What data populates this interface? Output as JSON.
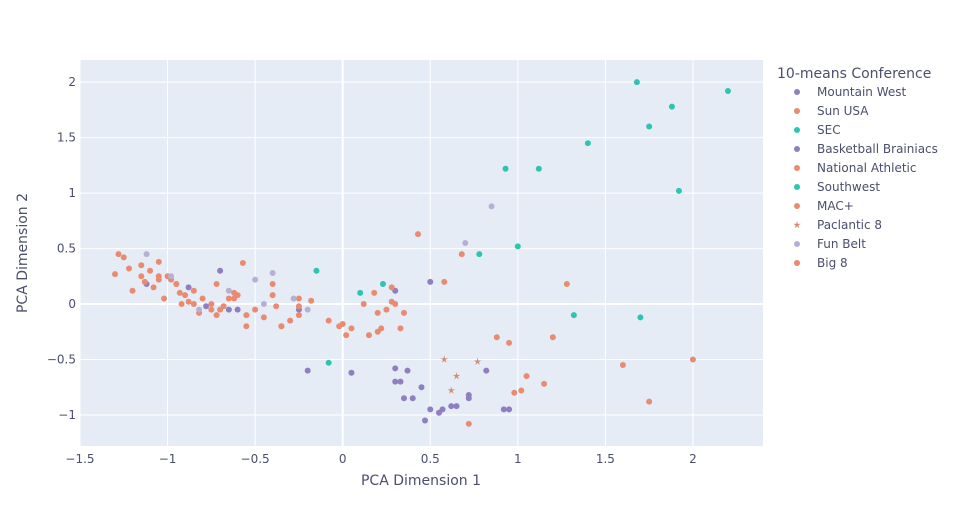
{
  "chart_data": {
    "type": "scatter",
    "xlabel": "PCA Dimension 1",
    "ylabel": "PCA Dimension 2",
    "xlim": [
      -1.5,
      2.4
    ],
    "ylim": [
      -1.28,
      2.2
    ],
    "x_ticks": [
      -1.5,
      -1,
      -0.5,
      0,
      0.5,
      1,
      1.5,
      2
    ],
    "x_tick_labels": [
      "−1.5",
      "−1",
      "−0.5",
      "0",
      "0.5",
      "1",
      "1.5",
      "2"
    ],
    "y_ticks": [
      -1,
      -0.5,
      0,
      0.5,
      1,
      1.5,
      2
    ],
    "y_tick_labels": [
      "−1",
      "−0.5",
      "0",
      "0.5",
      "1",
      "1.5",
      "2"
    ],
    "grid": true,
    "legend_title": "10-means Conference",
    "legend_position": "right",
    "series": [
      {
        "name": "Mountain West",
        "color": "#8e7fc0",
        "symbol": "circle",
        "x": [
          -0.25,
          -0.2,
          -0.6,
          -0.7,
          0.05,
          0.3,
          0.3,
          0.35,
          0.37,
          0.4,
          0.47,
          0.5,
          0.57,
          0.65,
          0.72,
          0.82,
          0.95
        ],
        "y": [
          -0.05,
          -0.6,
          -0.05,
          0.3,
          -0.62,
          -0.58,
          -0.7,
          -0.85,
          -0.6,
          -0.85,
          -1.05,
          -0.95,
          -0.95,
          -0.92,
          -0.85,
          -0.6,
          -0.95
        ]
      },
      {
        "name": "Sun USA",
        "color": "#e88b70",
        "symbol": "circle",
        "x": [
          -1.3,
          -1.22,
          -1.15,
          -1.1,
          -1.05,
          -1.0,
          -0.95,
          -0.9,
          -0.85,
          -0.8,
          -0.75,
          -0.7,
          -0.65,
          -0.6,
          -0.55,
          -0.4,
          -0.35,
          -0.3,
          -0.08,
          -0.02,
          0.2,
          0.22,
          0.25,
          0.3,
          0.43
        ],
        "y": [
          0.27,
          0.32,
          0.25,
          0.3,
          0.22,
          0.25,
          0.18,
          0.08,
          0.12,
          0.05,
          0.0,
          -0.05,
          0.05,
          0.08,
          -0.2,
          0.08,
          -0.2,
          -0.15,
          -0.15,
          -0.2,
          -0.25,
          -0.22,
          -0.05,
          0.0,
          0.63
        ]
      },
      {
        "name": "SEC",
        "color": "#2ec4b0",
        "symbol": "circle",
        "x": [
          1.68,
          1.88,
          1.75,
          1.4,
          0.93,
          1.12,
          2.2,
          1.92,
          1.0,
          0.78
        ],
        "y": [
          2.0,
          1.78,
          1.6,
          1.45,
          1.22,
          1.22,
          1.92,
          1.02,
          0.52,
          0.45
        ]
      },
      {
        "name": "Basketball Brainiacs",
        "color": "#8e7fc0",
        "symbol": "circle",
        "x": [
          -1.12,
          -0.88,
          -0.78,
          -0.65,
          0.5,
          0.3,
          0.33,
          0.45,
          0.55,
          0.62,
          0.72,
          0.92
        ],
        "y": [
          0.18,
          0.15,
          -0.02,
          -0.05,
          0.2,
          0.12,
          -0.7,
          -0.75,
          -0.98,
          -0.92,
          -0.82,
          -0.95
        ]
      },
      {
        "name": "National Athletic",
        "color": "#e88b70",
        "symbol": "circle",
        "x": [
          -1.2,
          -1.13,
          -1.08,
          -1.02,
          -0.98,
          -0.93,
          -0.88,
          -0.82,
          -0.72,
          -0.62,
          -0.57,
          -0.45,
          -0.38,
          -0.25,
          -0.18,
          0.02,
          0.18,
          0.28,
          0.33,
          0.68,
          1.02,
          1.6,
          2.0,
          1.75
        ],
        "y": [
          0.12,
          0.2,
          0.15,
          0.05,
          0.22,
          0.1,
          0.02,
          -0.08,
          -0.1,
          0.05,
          0.37,
          -0.12,
          -0.02,
          -0.1,
          0.03,
          -0.28,
          0.1,
          0.15,
          -0.22,
          0.45,
          -0.78,
          -0.55,
          -0.5,
          -0.88
        ]
      },
      {
        "name": "Southwest",
        "color": "#2ec4b0",
        "symbol": "circle",
        "x": [
          -0.15,
          -0.08,
          0.1,
          0.23,
          1.32,
          1.7
        ],
        "y": [
          0.3,
          -0.53,
          0.1,
          0.18,
          -0.1,
          -0.12
        ]
      },
      {
        "name": "MAC+",
        "color": "#e88b70",
        "symbol": "circle",
        "x": [
          -1.28,
          -1.15,
          -1.05,
          -0.95,
          -0.85,
          -0.75,
          -0.68,
          -0.55,
          -0.35,
          -0.25,
          0.0,
          0.12,
          0.2,
          0.88,
          0.98,
          1.05,
          1.15
        ],
        "y": [
          0.45,
          0.35,
          0.25,
          0.18,
          0.0,
          -0.05,
          -0.02,
          -0.1,
          -0.2,
          0.05,
          -0.18,
          0.0,
          -0.08,
          -0.3,
          -0.8,
          -0.65,
          -0.72
        ]
      },
      {
        "name": "Paclantic 8",
        "color": "#d48c6e",
        "symbol": "star",
        "x": [
          0.58,
          0.65,
          0.77,
          0.62
        ],
        "y": [
          -0.5,
          -0.65,
          -0.52,
          -0.78
        ]
      },
      {
        "name": "Fun Belt",
        "color": "#b7b0d6",
        "symbol": "circle",
        "x": [
          -1.12,
          -0.98,
          -0.82,
          -0.65,
          -0.5,
          -0.45,
          -0.4,
          -0.28,
          -0.2,
          0.7,
          0.85
        ],
        "y": [
          0.45,
          0.25,
          -0.05,
          0.12,
          0.22,
          0.0,
          0.28,
          0.05,
          -0.05,
          0.55,
          0.88
        ]
      },
      {
        "name": "Big 8",
        "color": "#e88b70",
        "symbol": "circle",
        "x": [
          -1.25,
          -1.05,
          -0.92,
          -0.72,
          -0.62,
          -0.5,
          -0.4,
          -0.25,
          0.05,
          0.15,
          0.28,
          0.35,
          0.58,
          0.72,
          0.95,
          1.2,
          1.28
        ],
        "y": [
          0.42,
          0.38,
          0.0,
          0.18,
          0.1,
          -0.05,
          0.18,
          -0.02,
          -0.22,
          -0.28,
          0.02,
          -0.08,
          0.2,
          -1.08,
          -0.35,
          -0.3,
          0.18
        ]
      }
    ]
  }
}
